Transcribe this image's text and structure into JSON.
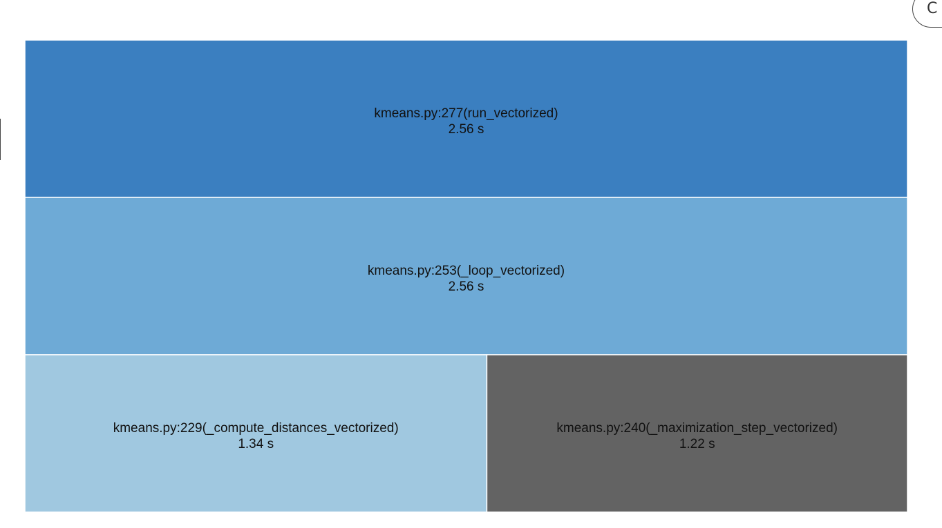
{
  "corner_button": {
    "label": "C"
  },
  "chart_data": {
    "type": "icicle",
    "unit": "s",
    "nodes": [
      {
        "id": "run_vectorized",
        "label": "kmeans.py:277(run_vectorized)",
        "value_label": "2.56 s",
        "value": 2.56,
        "depth": 0,
        "color": "#3b7fc0"
      },
      {
        "id": "loop_vectorized",
        "label": "kmeans.py:253(_loop_vectorized)",
        "value_label": "2.56 s",
        "value": 2.56,
        "depth": 1,
        "color": "#6eaad6"
      },
      {
        "id": "compute_distances_vectorized",
        "label": "kmeans.py:229(_compute_distances_vectorized)",
        "value_label": "1.34 s",
        "value": 1.34,
        "depth": 2,
        "color": "#a0c8e0"
      },
      {
        "id": "maximization_step_vectorized",
        "label": "kmeans.py:240(_maximization_step_vectorized)",
        "value_label": "1.22 s",
        "value": 1.22,
        "depth": 2,
        "color": "#636363"
      }
    ]
  }
}
